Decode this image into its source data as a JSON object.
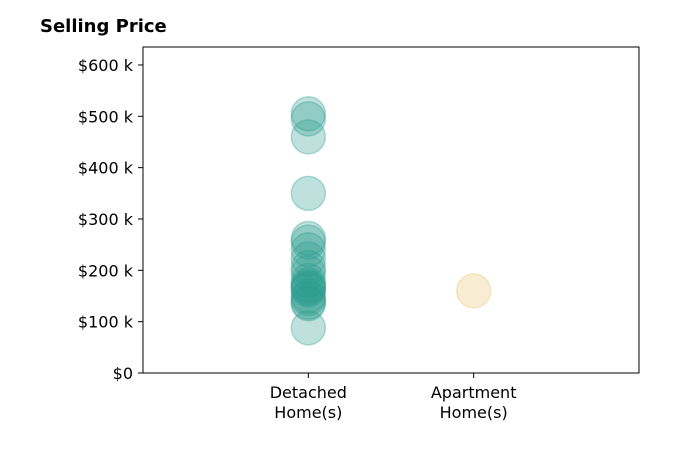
{
  "chart_data": {
    "type": "scatter",
    "title": "Selling Price",
    "xlabel": "",
    "ylabel": "",
    "categories": [
      [
        "Detached",
        "Home(s)"
      ],
      [
        "Apartment",
        "Home(s)"
      ]
    ],
    "y_ticks": [
      {
        "value": 0,
        "label": "$0"
      },
      {
        "value": 100000,
        "label": "$100 k"
      },
      {
        "value": 200000,
        "label": "$200 k"
      },
      {
        "value": 300000,
        "label": "$300 k"
      },
      {
        "value": 400000,
        "label": "$400 k"
      },
      {
        "value": 500000,
        "label": "$500 k"
      },
      {
        "value": 600000,
        "label": "$600 k"
      }
    ],
    "ylim": [
      0,
      635000
    ],
    "xlim": [
      -1,
      2
    ],
    "grid": false,
    "series": [
      {
        "category_index": 0,
        "color": "#2a9d8f",
        "values": [
          505000,
          495000,
          460000,
          350000,
          262000,
          255000,
          240000,
          222000,
          205000,
          195000,
          180000,
          172000,
          168000,
          165000,
          162000,
          150000,
          145000,
          138000,
          135000,
          88000
        ]
      },
      {
        "category_index": 1,
        "color": "#e9c46a",
        "values": [
          160000
        ]
      }
    ]
  }
}
